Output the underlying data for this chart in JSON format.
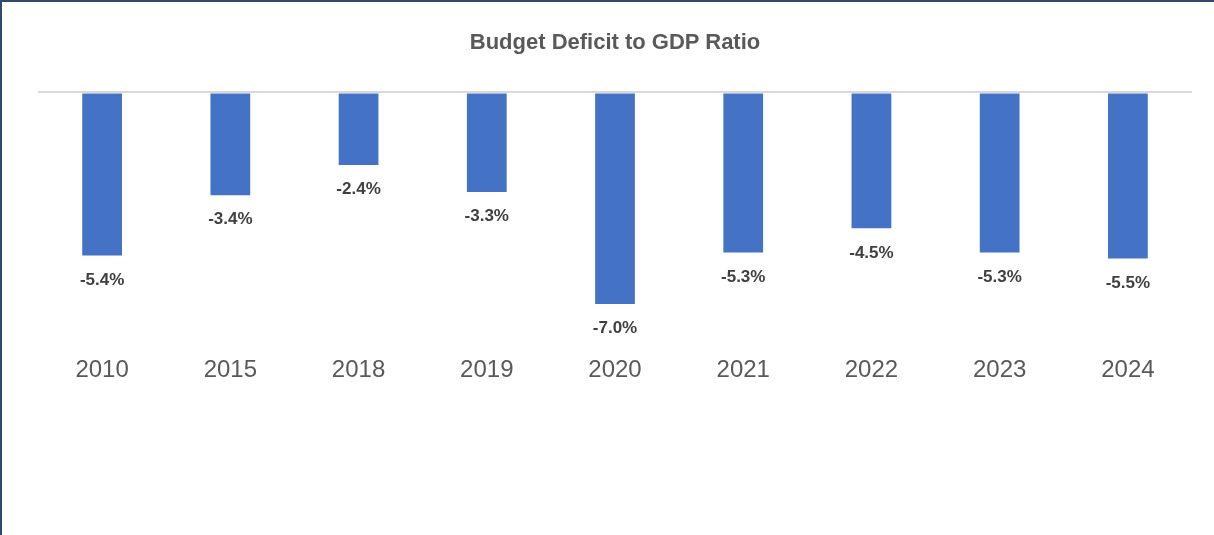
{
  "chart_data": {
    "type": "bar",
    "title": "Budget Deficit to GDP Ratio",
    "categories": [
      "2010",
      "2015",
      "2018",
      "2019",
      "2020",
      "2021",
      "2022",
      "2023",
      "2024"
    ],
    "values": [
      -5.4,
      -3.4,
      -2.4,
      -3.3,
      -7.0,
      -5.3,
      -4.5,
      -5.3,
      -5.5
    ],
    "value_labels": [
      "-5.4%",
      "-3.4%",
      "-2.4%",
      "-3.3%",
      "-7.0%",
      "-5.3%",
      "-4.5%",
      "-5.3%",
      "-5.5%"
    ],
    "color": "#4472c4",
    "grid": false,
    "legend": false
  }
}
